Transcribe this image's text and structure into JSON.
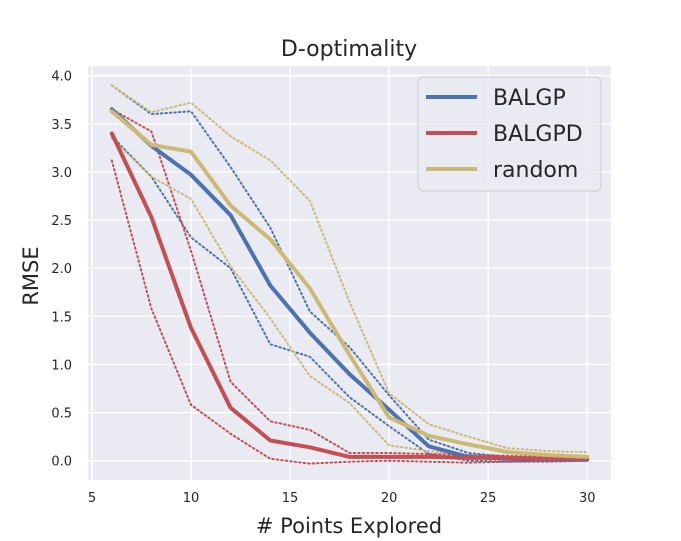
{
  "chart_data": {
    "type": "line",
    "title": "D-optimality",
    "xlabel": "# Points Explored",
    "ylabel": "RMSE",
    "xlim": [
      4.8,
      31.2
    ],
    "ylim": [
      -0.2,
      4.1
    ],
    "xticks": [
      5,
      10,
      15,
      20,
      25,
      30
    ],
    "yticks": [
      0.0,
      0.5,
      1.0,
      1.5,
      2.0,
      2.5,
      3.0,
      3.5,
      4.0
    ],
    "xtick_labels": [
      "5",
      "10",
      "15",
      "20",
      "25",
      "30"
    ],
    "ytick_labels": [
      "0.0",
      "0.5",
      "1.0",
      "1.5",
      "2.0",
      "2.5",
      "3.0",
      "3.5",
      "4.0"
    ],
    "legend_position": "top-right",
    "x": [
      6,
      8,
      10,
      12,
      14,
      16,
      18,
      20,
      22,
      24,
      26,
      28,
      30
    ],
    "series": [
      {
        "name": "BALGP",
        "color": "#4c72b0",
        "values": [
          3.65,
          3.27,
          2.97,
          2.55,
          1.82,
          1.33,
          0.9,
          0.53,
          0.15,
          0.04,
          0.02,
          0.01,
          0.01
        ],
        "upper": [
          3.9,
          3.6,
          3.63,
          3.05,
          2.42,
          1.55,
          1.18,
          0.68,
          0.22,
          0.08,
          0.04,
          0.03,
          0.03
        ],
        "lower": [
          3.37,
          2.95,
          2.32,
          2.0,
          1.21,
          1.08,
          0.66,
          0.36,
          0.07,
          0.0,
          -0.01,
          0.0,
          0.0
        ]
      },
      {
        "name": "BALGPD",
        "color": "#c44e52",
        "values": [
          3.4,
          2.53,
          1.38,
          0.55,
          0.21,
          0.14,
          0.04,
          0.04,
          0.04,
          0.03,
          0.03,
          0.02,
          0.02
        ],
        "upper": [
          3.65,
          3.42,
          2.18,
          0.82,
          0.41,
          0.32,
          0.08,
          0.08,
          0.07,
          0.06,
          0.05,
          0.04,
          0.03
        ],
        "lower": [
          3.12,
          1.58,
          0.58,
          0.28,
          0.02,
          -0.03,
          -0.01,
          0.0,
          -0.01,
          -0.02,
          -0.01,
          -0.01,
          0.0
        ]
      },
      {
        "name": "random",
        "color": "#ccb974",
        "values": [
          3.63,
          3.28,
          3.21,
          2.65,
          2.3,
          1.79,
          1.1,
          0.45,
          0.26,
          0.17,
          0.09,
          0.06,
          0.04
        ],
        "upper": [
          3.9,
          3.62,
          3.72,
          3.37,
          3.12,
          2.7,
          1.65,
          0.7,
          0.38,
          0.25,
          0.13,
          0.1,
          0.09
        ],
        "lower": [
          3.35,
          2.95,
          2.72,
          2.02,
          1.48,
          0.88,
          0.6,
          0.16,
          0.1,
          0.06,
          0.02,
          0.01,
          0.0
        ]
      }
    ]
  }
}
